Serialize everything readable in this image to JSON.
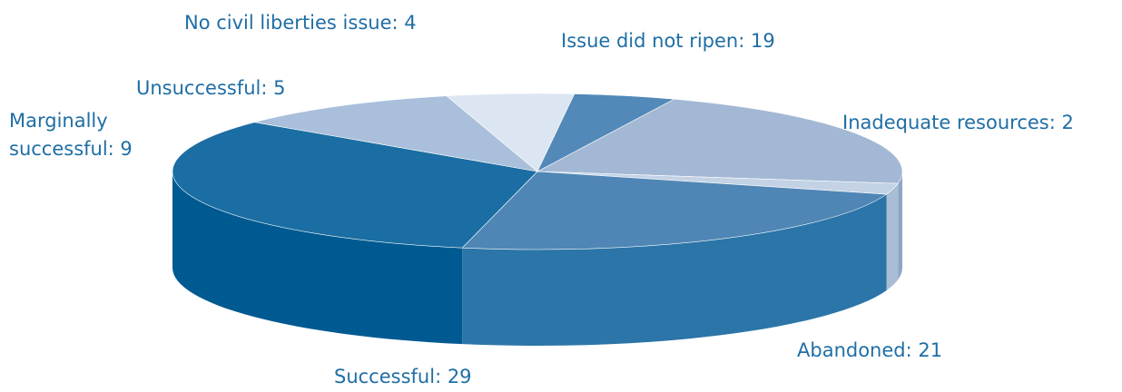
{
  "chart_data": {
    "type": "pie",
    "style": "3d",
    "title": "",
    "slices": [
      {
        "label": "Issue did not ripen",
        "value": 19,
        "color": "#a3b8d4",
        "side_color": "#8ea6c6"
      },
      {
        "label": "Inadequate resources",
        "value": 2,
        "color": "#c3d2e5",
        "side_color": "#a9bcd6"
      },
      {
        "label": "Abandoned",
        "value": 21,
        "color": "#4f86b5",
        "side_color": "#2b75a8"
      },
      {
        "label": "Successful",
        "value": 29,
        "color": "#1a6ea3",
        "side_color": "#005a92"
      },
      {
        "label": "Marginally successful",
        "value": 9,
        "color": "#a9bfdb",
        "side_color": "#8fa8c9"
      },
      {
        "label": "Unsuccessful",
        "value": 5,
        "color": "#dce6f2",
        "side_color": "#c5d3e4"
      },
      {
        "label": "No civil liberties issue",
        "value": 4,
        "color": "#5289b8",
        "side_color": "#3d75a5"
      }
    ],
    "data_labels": [
      "Issue did not ripen: 19",
      "Inadequate resources: 2",
      "Abandoned: 21",
      "Successful: 29",
      "Marginally successful: 9",
      "Unsuccessful: 5",
      "No civil liberties issue: 4"
    ],
    "label_color": "#1f6ea5"
  }
}
